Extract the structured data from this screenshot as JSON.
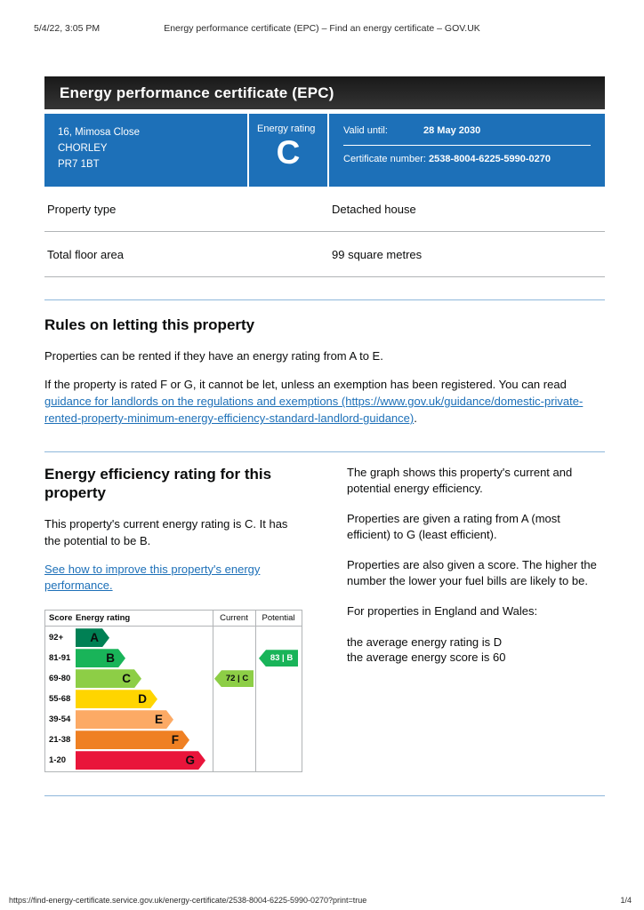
{
  "print_header": {
    "timestamp": "5/4/22, 3:05 PM",
    "title": "Energy performance certificate (EPC) – Find an energy certificate – GOV.UK"
  },
  "title_banner": "Energy performance certificate (EPC)",
  "summary_banner": {
    "background_color": "#1d70b8",
    "address_lines": [
      "16, Mimosa Close",
      "CHORLEY",
      "PR7 1BT"
    ],
    "energy_rating_label": "Energy rating",
    "energy_rating_value": "C",
    "valid_until_label": "Valid until:",
    "valid_until_value": "28 May 2030",
    "certificate_number_label": "Certificate number:",
    "certificate_number_value": "2538-8004-6225-5990-0270"
  },
  "property_summary": {
    "rows": [
      {
        "label": "Property type",
        "value": "Detached house"
      },
      {
        "label": "Total floor area",
        "value": "99 square metres"
      }
    ]
  },
  "letting_section": {
    "heading": "Rules on letting this property",
    "paragraph1": "Properties can be rented if they have an energy rating from A to E.",
    "paragraph2_before_link": "If the property is rated F or G, it cannot be let, unless an exemption has been registered. You can read ",
    "paragraph2_link": "guidance for landlords on the regulations and exemptions (https://www.gov.uk/guidance/domestic-private-rented-property-minimum-energy-efficiency-standard-landlord-guidance)",
    "paragraph2_after_link": "."
  },
  "efficiency_section": {
    "heading": "Energy efficiency rating for this property",
    "paragraph1": "This property's current energy rating is C. It has the potential to be B.",
    "improve_link": "See how to improve this property's energy performance.",
    "right_column": [
      "The graph shows this property's current and potential energy efficiency.",
      "Properties are given a rating from A (most efficient) to G (least efficient).",
      "Properties are also given a score. The higher the number the lower your fuel bills are likely to be.",
      "For properties in England and Wales:",
      "the average energy rating is D",
      "the average energy score is 60"
    ]
  },
  "chart_data": {
    "type": "bar",
    "columns": {
      "score": "Score",
      "rating": "Energy rating",
      "current": "Current",
      "potential": "Potential"
    },
    "bands": [
      {
        "score": "92+",
        "letter": "A",
        "color": "#008054"
      },
      {
        "score": "81-91",
        "letter": "B",
        "color": "#19b459"
      },
      {
        "score": "69-80",
        "letter": "C",
        "color": "#8dce46"
      },
      {
        "score": "55-68",
        "letter": "D",
        "color": "#ffd500"
      },
      {
        "score": "39-54",
        "letter": "E",
        "color": "#fcaa65"
      },
      {
        "score": "21-38",
        "letter": "F",
        "color": "#ef8023"
      },
      {
        "score": "1-20",
        "letter": "G",
        "color": "#e9153b"
      }
    ],
    "current": {
      "score": 72,
      "band": "C",
      "label": "72 | C",
      "color": "#8dce46"
    },
    "potential": {
      "score": 83,
      "band": "B",
      "label": "83 | B",
      "color": "#19b459"
    }
  },
  "print_footer": {
    "url": "https://find-energy-certificate.service.gov.uk/energy-certificate/2538-8004-6225-5990-0270?print=true",
    "page_indicator": "1/4"
  }
}
